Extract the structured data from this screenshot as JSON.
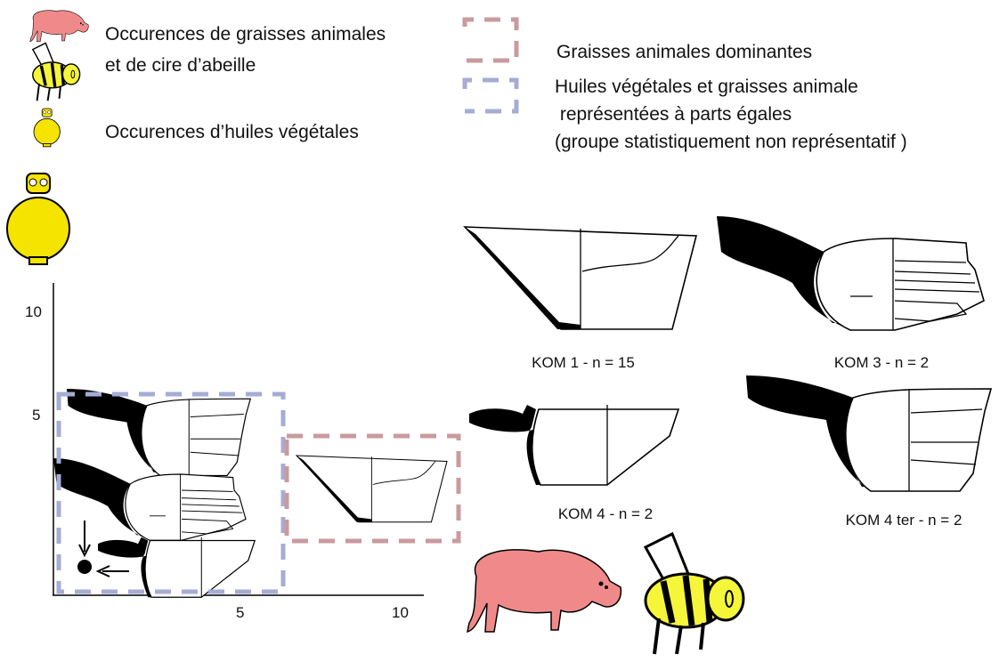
{
  "legend": {
    "icons": [
      {
        "lines": [
          "Occurences de graisses animales",
          "et de cire d’abeille"
        ]
      },
      {
        "lines": [
          "Occurences d’huiles végétales"
        ]
      }
    ],
    "groups": [
      {
        "lines": [
          "Graisses animales dominantes"
        ]
      },
      {
        "lines": [
          "Huiles végétales et graisses animale",
          " représentées à parts égales",
          "(groupe statistiquement non représentatif )"
        ]
      }
    ]
  },
  "axes": {
    "y_ticks": [
      10,
      5
    ],
    "x_ticks": [
      5,
      10
    ]
  },
  "vessels": [
    {
      "label": "KOM 1 - n = 15"
    },
    {
      "label": "KOM 3 - n = 2"
    },
    {
      "label": "KOM 4 - n = 2"
    },
    {
      "label": "KOM 4 ter - n = 2"
    }
  ]
}
